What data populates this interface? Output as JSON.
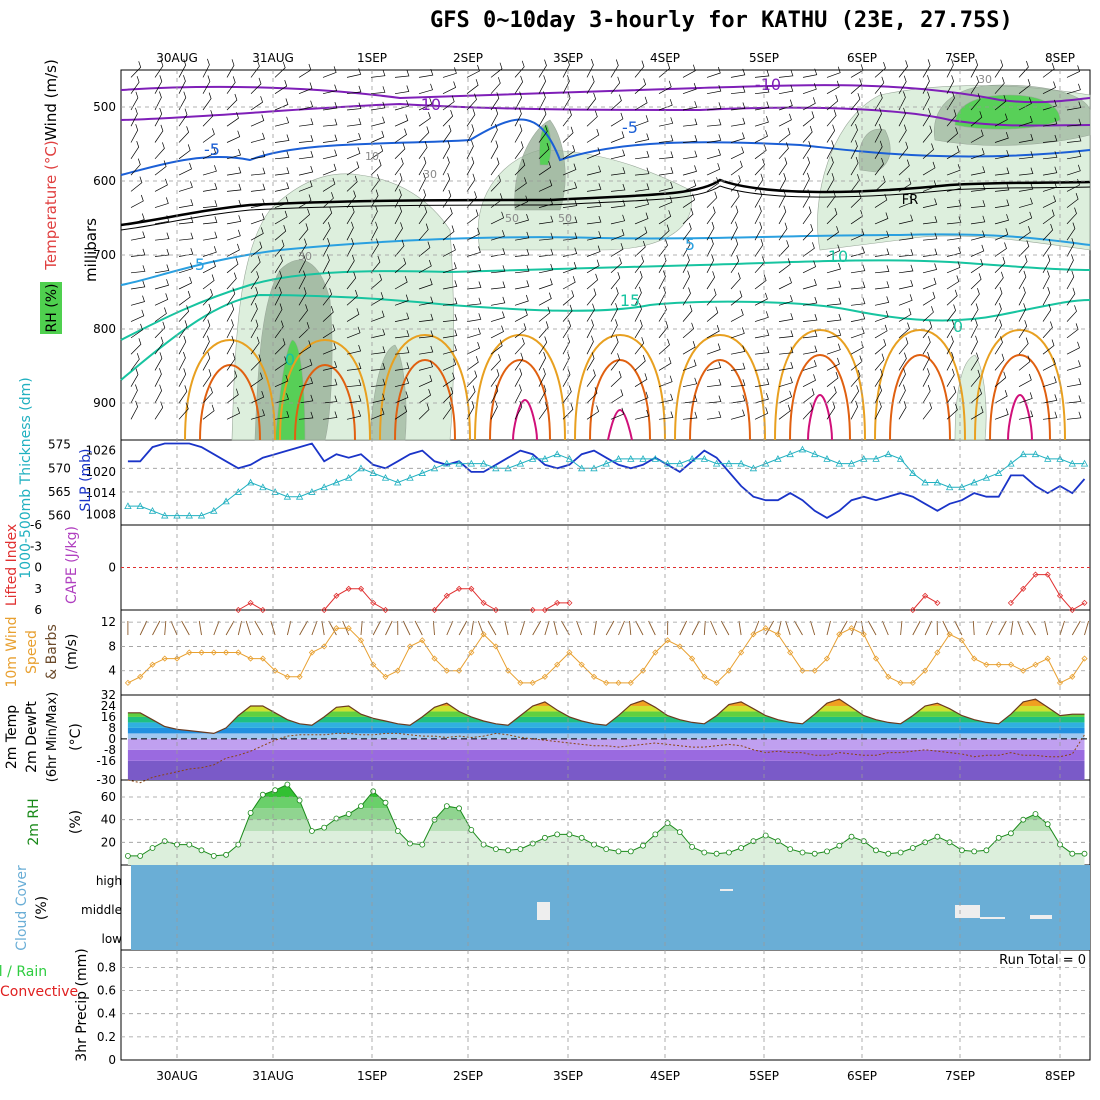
{
  "title": "GFS 0~10day 3-hourly for KATHU (23E, 27.75S)",
  "colors": {
    "temp_purple": "#7f1fb8",
    "temp_blue": "#1b5fd6",
    "temp_lightblue": "#2aa0e0",
    "temp_teal": "#17c4a0",
    "temp_orange": "#e8a020",
    "temp_darkorange": "#e06010",
    "temp_magenta": "#d0107a",
    "rh_green": "#4fd04f",
    "slp": "#1a34c8",
    "thickness": "#20b0c0",
    "wind10": "#e8a030",
    "barb": "#8b5a2b",
    "cloud_blue": "#6aaed6",
    "rain_green": "#2ecc40",
    "convective_red": "#e02020",
    "cape_purple": "#b040c0",
    "lifted_red": "#e03030"
  },
  "x_dates": [
    "30AUG",
    "31AUG",
    "1SEP",
    "2SEP",
    "3SEP",
    "4SEP",
    "5SEP",
    "6SEP",
    "7SEP",
    "8SEP"
  ],
  "panels": {
    "upper": {
      "ylabel_wind": "Wind (m/s)",
      "ylabel_temp": "Temperature (°C)",
      "ylabel_rh": "RH (%)",
      "ylabel_millibars": "millibars",
      "y_ticks": [
        "500",
        "600",
        "700",
        "800",
        "900"
      ],
      "contour_labels": [
        "-10",
        "-10",
        "-5",
        "-5",
        "FR",
        "5",
        "5",
        "10",
        "15",
        "0",
        "0",
        "30",
        "30",
        "30",
        "50",
        "50",
        "10"
      ]
    },
    "pressure": {
      "ylabel_thickness": "1000-500mb Thickness (dm)",
      "ylabel_slp": "SLP (mb)",
      "left_ticks": [
        "575",
        "570",
        "565",
        "560"
      ],
      "right_ticks": [
        "1026",
        "1020",
        "1014",
        "1008"
      ]
    },
    "instability": {
      "ylabel_li": "Lifted Index",
      "ylabel_cape": "CAPE (J/kg)",
      "ticks": [
        "-6",
        "-3",
        "0",
        "3",
        "6"
      ]
    },
    "wind10": {
      "ylabel_a": "10m Wind",
      "ylabel_b": "Speed",
      "ylabel_c": "& Barbs",
      "unit": "(m/s)",
      "ticks": [
        "12",
        "8",
        "4"
      ]
    },
    "temp2m": {
      "ylabel_a": "2m Temp",
      "ylabel_b": "2m DewPt",
      "ylabel_c": "(6hr Min/Max)",
      "unit": "(°C)",
      "ticks": [
        "32",
        "24",
        "16",
        "8",
        "0",
        "-8",
        "-16",
        "-30"
      ]
    },
    "rh2m": {
      "ylabel": "2m RH",
      "unit": "(%)",
      "ticks": [
        "60",
        "40",
        "20"
      ]
    },
    "cloud": {
      "ylabel": "Cloud Cover",
      "unit": "(%)",
      "levels": [
        "high",
        "middle",
        "low"
      ]
    },
    "precip": {
      "ylabel_a": "Total / Rain",
      "ylabel_b": "Convective",
      "ylabel_c": "3hr Precip (mm)",
      "run_total": "Run Total = 0",
      "ticks": [
        "0.8",
        "0.6",
        "0.4",
        "0.2",
        "0"
      ]
    }
  },
  "chart_data": [
    {
      "type": "line",
      "title": "1000-500mb Thickness (dm) / SLP (mb)",
      "x": [
        "29AUG12",
        "29AUG15",
        "29AUG18",
        "29AUG21",
        "30AUG00",
        "30AUG03",
        "30AUG06",
        "30AUG09",
        "30AUG12",
        "30AUG15",
        "30AUG18",
        "30AUG21",
        "31AUG00",
        "31AUG03",
        "31AUG06",
        "31AUG09",
        "31AUG12",
        "31AUG15",
        "31AUG18",
        "31AUG21",
        "1SEP00",
        "1SEP03",
        "1SEP06",
        "1SEP09",
        "1SEP12",
        "1SEP15",
        "1SEP18",
        "1SEP21",
        "2SEP00",
        "2SEP03",
        "2SEP06",
        "2SEP09",
        "2SEP12",
        "2SEP15",
        "2SEP18",
        "2SEP21",
        "3SEP00",
        "3SEP03",
        "3SEP06",
        "3SEP09",
        "3SEP12",
        "3SEP15",
        "3SEP18",
        "3SEP21",
        "4SEP00",
        "4SEP03",
        "4SEP06",
        "4SEP09",
        "4SEP12",
        "4SEP15",
        "4SEP18",
        "4SEP21",
        "5SEP00",
        "5SEP03",
        "5SEP06",
        "5SEP09",
        "5SEP12",
        "5SEP15",
        "5SEP18",
        "5SEP21",
        "6SEP00",
        "6SEP03",
        "6SEP06",
        "6SEP09",
        "6SEP12",
        "6SEP15",
        "6SEP18",
        "6SEP21",
        "7SEP00",
        "7SEP03",
        "7SEP06",
        "7SEP09",
        "7SEP12",
        "7SEP15",
        "7SEP18",
        "7SEP21",
        "8SEP00",
        "8SEP03",
        "8SEP06"
      ],
      "series": [
        {
          "name": "SLP (mb)",
          "axis": "right",
          "values": [
            1023,
            1023,
            1027,
            1028,
            1028,
            1028,
            1027,
            1025,
            1023,
            1021,
            1022,
            1024,
            1025,
            1026,
            1027,
            1028,
            1023,
            1025,
            1024,
            1025,
            1022,
            1021,
            1023,
            1025,
            1026,
            1023,
            1022,
            1023,
            1020,
            1020,
            1022,
            1024,
            1026,
            1025,
            1022,
            1021,
            1022,
            1025,
            1026,
            1024,
            1022,
            1021,
            1022,
            1024,
            1022,
            1020,
            1023,
            1026,
            1024,
            1020,
            1016,
            1013,
            1012,
            1012,
            1014,
            1012,
            1009,
            1007,
            1009,
            1012,
            1013,
            1012,
            1013,
            1014,
            1013,
            1011,
            1009,
            1011,
            1012,
            1014,
            1013,
            1013,
            1019,
            1019,
            1016,
            1014,
            1016,
            1014,
            1018
          ]
        },
        {
          "name": "1000-500mb Thickness (dm)",
          "axis": "left",
          "values": [
            562,
            562,
            561,
            560,
            560,
            560,
            560,
            561,
            563,
            565,
            567,
            566,
            565,
            564,
            564,
            565,
            566,
            567,
            568,
            570,
            569,
            568,
            567,
            568,
            569,
            570,
            571,
            571,
            571,
            571,
            570,
            570,
            571,
            572,
            572,
            573,
            572,
            570,
            570,
            571,
            572,
            572,
            572,
            572,
            571,
            571,
            572,
            572,
            571,
            571,
            571,
            570,
            571,
            572,
            573,
            574,
            573,
            572,
            571,
            571,
            572,
            572,
            573,
            572,
            569,
            567,
            567,
            566,
            566,
            567,
            568,
            569,
            571,
            573,
            573,
            572,
            572,
            571,
            571
          ]
        }
      ],
      "ylim_left": [
        558,
        576
      ],
      "ylim_right": [
        1005,
        1029
      ]
    },
    {
      "type": "line",
      "title": "10m Wind Speed (m/s)",
      "x": [
        "29AUG12",
        "29AUG15",
        "29AUG18",
        "29AUG21",
        "30AUG00",
        "30AUG03",
        "30AUG06",
        "30AUG09",
        "30AUG12",
        "30AUG15",
        "30AUG18",
        "30AUG21",
        "31AUG00",
        "31AUG03",
        "31AUG06",
        "31AUG09",
        "31AUG12",
        "31AUG15",
        "31AUG18",
        "31AUG21",
        "1SEP00",
        "1SEP03",
        "1SEP06",
        "1SEP09",
        "1SEP12",
        "1SEP15",
        "1SEP18",
        "1SEP21",
        "2SEP00",
        "2SEP03",
        "2SEP06",
        "2SEP09",
        "2SEP12",
        "2SEP15",
        "2SEP18",
        "2SEP21",
        "3SEP00",
        "3SEP03",
        "3SEP06",
        "3SEP09",
        "3SEP12",
        "3SEP15",
        "3SEP18",
        "3SEP21",
        "4SEP00",
        "4SEP03",
        "4SEP06",
        "4SEP09",
        "4SEP12",
        "4SEP15",
        "4SEP18",
        "4SEP21",
        "5SEP00",
        "5SEP03",
        "5SEP06",
        "5SEP09",
        "5SEP12",
        "5SEP15",
        "5SEP18",
        "5SEP21",
        "6SEP00",
        "6SEP03",
        "6SEP06",
        "6SEP09",
        "6SEP12",
        "6SEP15",
        "6SEP18",
        "6SEP21",
        "7SEP00",
        "7SEP03",
        "7SEP06",
        "7SEP09",
        "7SEP12",
        "7SEP15",
        "7SEP18",
        "7SEP21",
        "8SEP00",
        "8SEP03",
        "8SEP06"
      ],
      "series": [
        {
          "name": "10m Wind Speed",
          "values": [
            2,
            3,
            5,
            6,
            6,
            7,
            7,
            7,
            7,
            7,
            6,
            6,
            4,
            3,
            3,
            7,
            8,
            11,
            11,
            9,
            5,
            3,
            4,
            8,
            9,
            6,
            4,
            4,
            7,
            10,
            8,
            4,
            2,
            2,
            3,
            5,
            7,
            5,
            3,
            2,
            2,
            2,
            4,
            7,
            9,
            8,
            6,
            3,
            2,
            4,
            7,
            10,
            11,
            10,
            7,
            4,
            4,
            6,
            10,
            11,
            10,
            6,
            3,
            2,
            2,
            4,
            7,
            10,
            9,
            6,
            5,
            5,
            5,
            4,
            5,
            6,
            2,
            3,
            6
          ]
        }
      ],
      "ylim": [
        0,
        14
      ]
    },
    {
      "type": "line",
      "title": "2m Temp / 2m DewPt (°C)",
      "x": [
        "29AUG12",
        "29AUG15",
        "29AUG18",
        "29AUG21",
        "30AUG00",
        "30AUG03",
        "30AUG06",
        "30AUG09",
        "30AUG12",
        "30AUG15",
        "30AUG18",
        "30AUG21",
        "31AUG00",
        "31AUG03",
        "31AUG06",
        "31AUG09",
        "31AUG12",
        "31AUG15",
        "31AUG18",
        "31AUG21",
        "1SEP00",
        "1SEP03",
        "1SEP06",
        "1SEP09",
        "1SEP12",
        "1SEP15",
        "1SEP18",
        "1SEP21",
        "2SEP00",
        "2SEP03",
        "2SEP06",
        "2SEP09",
        "2SEP12",
        "2SEP15",
        "2SEP18",
        "2SEP21",
        "3SEP00",
        "3SEP03",
        "3SEP06",
        "3SEP09",
        "3SEP12",
        "3SEP15",
        "3SEP18",
        "3SEP21",
        "4SEP00",
        "4SEP03",
        "4SEP06",
        "4SEP09",
        "4SEP12",
        "4SEP15",
        "4SEP18",
        "4SEP21",
        "5SEP00",
        "5SEP03",
        "5SEP06",
        "5SEP09",
        "5SEP12",
        "5SEP15",
        "5SEP18",
        "5SEP21",
        "6SEP00",
        "6SEP03",
        "6SEP06",
        "6SEP09",
        "6SEP12",
        "6SEP15",
        "6SEP18",
        "6SEP21",
        "7SEP00",
        "7SEP03",
        "7SEP06",
        "7SEP09",
        "7SEP12",
        "7SEP15",
        "7SEP18",
        "7SEP21",
        "8SEP00",
        "8SEP03",
        "8SEP06"
      ],
      "series": [
        {
          "name": "2m Temp",
          "values": [
            19,
            19,
            14,
            9,
            7,
            6,
            5,
            4,
            8,
            17,
            24,
            24,
            19,
            14,
            11,
            10,
            16,
            23,
            24,
            18,
            15,
            13,
            11,
            10,
            16,
            23,
            26,
            20,
            16,
            13,
            11,
            10,
            17,
            24,
            27,
            21,
            16,
            13,
            11,
            10,
            17,
            25,
            28,
            23,
            17,
            14,
            12,
            11,
            17,
            25,
            27,
            22,
            17,
            14,
            12,
            11,
            18,
            26,
            29,
            23,
            17,
            14,
            12,
            11,
            17,
            24,
            26,
            22,
            17,
            14,
            12,
            11,
            18,
            27,
            29,
            23,
            17,
            18,
            18
          ]
        },
        {
          "name": "2m DewPt",
          "values": [
            -30,
            -32,
            -28,
            -26,
            -24,
            -22,
            -21,
            -19,
            -14,
            -12,
            -9,
            -5,
            -1,
            2,
            3,
            3,
            3,
            4,
            4,
            3,
            3,
            4,
            4,
            3,
            2,
            2,
            1,
            2,
            1,
            2,
            4,
            3,
            1,
            0,
            -1,
            -2,
            -3,
            -4,
            -5,
            -5,
            -6,
            -5,
            -4,
            -3,
            -4,
            -5,
            -6,
            -6,
            -5,
            -4,
            -5,
            -8,
            -10,
            -9,
            -10,
            -10,
            -12,
            -12,
            -10,
            -11,
            -12,
            -12,
            -10,
            -10,
            -9,
            -8,
            -9,
            -10,
            -11,
            -13,
            -12,
            -12,
            -10,
            -12,
            -12,
            -13,
            -13,
            -11,
            3
          ]
        }
      ],
      "ylim": [
        -30,
        32
      ]
    },
    {
      "type": "area",
      "title": "2m RH (%)",
      "x": [
        "29AUG12",
        "29AUG15",
        "29AUG18",
        "29AUG21",
        "30AUG00",
        "30AUG03",
        "30AUG06",
        "30AUG09",
        "30AUG12",
        "30AUG15",
        "30AUG18",
        "30AUG21",
        "31AUG00",
        "31AUG03",
        "31AUG06",
        "31AUG09",
        "31AUG12",
        "31AUG15",
        "31AUG18",
        "31AUG21",
        "1SEP00",
        "1SEP03",
        "1SEP06",
        "1SEP09",
        "1SEP12",
        "1SEP15",
        "1SEP18",
        "1SEP21",
        "2SEP00",
        "2SEP03",
        "2SEP06",
        "2SEP09",
        "2SEP12",
        "2SEP15",
        "2SEP18",
        "2SEP21",
        "3SEP00",
        "3SEP03",
        "3SEP06",
        "3SEP09",
        "3SEP12",
        "3SEP15",
        "3SEP18",
        "3SEP21",
        "4SEP00",
        "4SEP03",
        "4SEP06",
        "4SEP09",
        "4SEP12",
        "4SEP15",
        "4SEP18",
        "4SEP21",
        "5SEP00",
        "5SEP03",
        "5SEP06",
        "5SEP09",
        "5SEP12",
        "5SEP15",
        "5SEP18",
        "5SEP21",
        "6SEP00",
        "6SEP03",
        "6SEP06",
        "6SEP09",
        "6SEP12",
        "6SEP15",
        "6SEP18",
        "6SEP21",
        "7SEP00",
        "7SEP03",
        "7SEP06",
        "7SEP09",
        "7SEP12",
        "7SEP15",
        "7SEP18",
        "7SEP21",
        "8SEP00",
        "8SEP03",
        "8SEP06"
      ],
      "series": [
        {
          "name": "2m RH",
          "values": [
            8,
            8,
            15,
            21,
            18,
            18,
            13,
            8,
            9,
            18,
            46,
            62,
            66,
            71,
            57,
            30,
            33,
            41,
            45,
            52,
            65,
            55,
            30,
            19,
            18,
            40,
            52,
            50,
            31,
            18,
            14,
            13,
            14,
            19,
            24,
            27,
            27,
            24,
            18,
            14,
            12,
            12,
            17,
            27,
            37,
            29,
            16,
            11,
            10,
            11,
            15,
            21,
            26,
            21,
            14,
            11,
            10,
            12,
            17,
            25,
            21,
            13,
            10,
            11,
            15,
            20,
            25,
            20,
            13,
            12,
            13,
            24,
            28,
            40,
            45,
            36,
            18,
            10,
            10
          ]
        }
      ],
      "ylim": [
        0,
        75
      ]
    },
    {
      "type": "line",
      "title": "Lifted Index",
      "x": [
        "30AUG15",
        "30AUG18",
        "30AUG21",
        "31AUG00",
        "31AUG03",
        "31AUG06",
        "31AUG09",
        "31AUG12",
        "31AUG15",
        "31AUG18",
        "31AUG21",
        "1SEP00",
        "1SEP03",
        "1SEP06",
        "1SEP09",
        "1SEP12",
        "1SEP15",
        "1SEP18",
        "1SEP21",
        "2SEP00",
        "2SEP03",
        "2SEP06",
        "2SEP09",
        "2SEP12",
        "2SEP15",
        "2SEP18",
        "2SEP21",
        "3SEP00",
        "6SEP12",
        "6SEP15",
        "6SEP18",
        "7SEP12",
        "7SEP15",
        "7SEP18",
        "7SEP21",
        "8SEP00",
        "8SEP03",
        "8SEP06"
      ],
      "series": [
        {
          "name": "Lifted Index",
          "values": [
            6,
            5,
            6,
            null,
            null,
            null,
            null,
            6,
            4,
            3,
            3,
            5,
            6,
            null,
            null,
            null,
            6,
            4,
            3,
            3,
            5,
            6,
            null,
            null,
            6,
            6,
            5,
            5,
            6,
            4,
            5,
            5,
            3,
            1,
            1,
            4,
            6,
            5
          ]
        }
      ],
      "ylim": [
        -6,
        6
      ]
    },
    {
      "type": "heatmap",
      "title": "Cloud Cover (%)",
      "categories": [
        "high",
        "middle",
        "low"
      ],
      "visible_cloud_patches": [
        {
          "level": "middle",
          "time": "2SEP21",
          "note": "white gap"
        },
        {
          "level": "high",
          "time": "4SEP12"
        },
        {
          "level": "middle",
          "time": "7SEP00"
        },
        {
          "level": "middle",
          "time": "7SEP15"
        }
      ]
    }
  ]
}
